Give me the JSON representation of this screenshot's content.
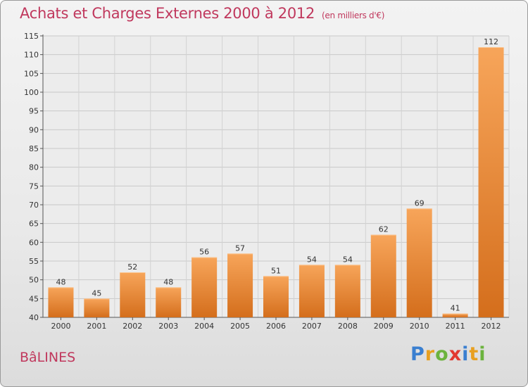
{
  "title": "Achats et Charges Externes 2000 à 2012",
  "subtitle": "(en milliers d'€)",
  "town": "BâLINES",
  "logo": "Proxiti",
  "colors": {
    "accent": "#c0385d",
    "bar_top": "#f7a55a",
    "bar_bottom": "#d46e1c"
  },
  "chart_data": {
    "type": "bar",
    "title": "Achats et Charges Externes 2000 à 2012",
    "subtitle": "(en milliers d'€)",
    "categories": [
      "2000",
      "2001",
      "2002",
      "2003",
      "2004",
      "2005",
      "2006",
      "2007",
      "2008",
      "2009",
      "2010",
      "2011",
      "2012"
    ],
    "values": [
      48,
      45,
      52,
      48,
      56,
      57,
      51,
      54,
      54,
      62,
      69,
      41,
      112
    ],
    "ylim": [
      40,
      115
    ],
    "yticks": [
      40,
      45,
      50,
      55,
      60,
      65,
      70,
      75,
      80,
      85,
      90,
      95,
      100,
      105,
      110,
      115
    ],
    "grid": true,
    "legend": "none"
  }
}
